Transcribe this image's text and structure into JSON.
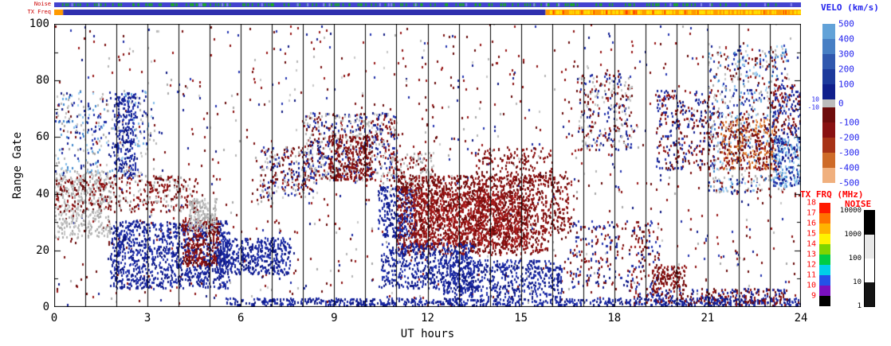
{
  "chart_data": {
    "type": "heatmap",
    "title": "",
    "xlabel": "UT hours",
    "ylabel": "Range Gate",
    "xlim": [
      0,
      24
    ],
    "ylim": [
      0,
      100
    ],
    "xticks": [
      0,
      3,
      6,
      9,
      12,
      15,
      18,
      21,
      24
    ],
    "yticks": [
      0,
      20,
      40,
      60,
      80,
      100
    ],
    "hour_gridlines": true,
    "seed": 1337,
    "strips": {
      "noise_label": "Noise",
      "txfreq_label": "TX Freq",
      "noise": {
        "base": "#4343cf",
        "speck": "#18b418",
        "speck_count": 180,
        "light": "#8c8cf0",
        "light_count": 24
      },
      "txfreq": {
        "segments": [
          {
            "from": 0.0,
            "to": 0.012,
            "color": "#ff9a00"
          },
          {
            "from": 0.012,
            "to": 0.658,
            "color": "#2f2fae"
          },
          {
            "from": 0.658,
            "to": 1.0,
            "color": "#ff9a00"
          }
        ],
        "dash_from": 0.658,
        "dash_color": "#ffe400",
        "dash_count": 150,
        "dash2_color": "#ff3c00",
        "dash2_count": 18
      }
    },
    "colorbars": {
      "velo": {
        "title": "VELO (km/s)",
        "title_color": "#2222ee",
        "label_color": "#2222ee",
        "labels": [
          "500",
          "400",
          "300",
          "200",
          "100",
          "0",
          "-100",
          "-200",
          "-300",
          "-400",
          "-500"
        ],
        "mid_labels": [
          "10",
          "-10"
        ],
        "colors": [
          "#62a2d8",
          "#477fc4",
          "#3058ae",
          "#1d3a9c",
          "#101f8c",
          "#bcbcbc",
          "#6e0c0c",
          "#891111",
          "#a73317",
          "#ce6b28",
          "#f0b07e"
        ]
      },
      "txfrq": {
        "title": "TX FRQ (MHz)",
        "title_color": "#ff0000",
        "label_color": "#ff0000",
        "labels": [
          "18",
          "17",
          "16",
          "15",
          "14",
          "13",
          "12",
          "11",
          "10",
          "9"
        ],
        "colors": [
          "#ff1a00",
          "#ff7300",
          "#ffb300",
          "#fff200",
          "#7fd400",
          "#00cc44",
          "#00cfe8",
          "#2451e8",
          "#7a10bf",
          "#000000"
        ]
      },
      "noise": {
        "title": "NOISE",
        "title_color": "#ff0000",
        "label_color": "#000000",
        "labels": [
          "10000",
          "1000",
          "100",
          "10",
          "1"
        ],
        "colors": [
          "#000000",
          "#e8e8e8",
          "#ffffff",
          "#141414"
        ]
      }
    },
    "palettes": {
      "blue": [
        "#131f94",
        "#1b2aa4",
        "#0e1780",
        "#2334b0"
      ],
      "lightblue": [
        "#63a7de",
        "#82bce9",
        "#3f86cc",
        "#9fd0f2"
      ],
      "darkred": [
        "#7a0e0e",
        "#8d1212",
        "#670a0a",
        "#991717"
      ],
      "brightred": [
        "#b22121",
        "#a31b1b"
      ],
      "orange": [
        "#e08038",
        "#d2691e",
        "#f0a360",
        "#c75c1c"
      ],
      "gray": [
        "#b5b5b5",
        "#c7c7c7",
        "#a7a7a7"
      ]
    },
    "regions": [
      {
        "x": [
          0,
          24
        ],
        "y": [
          0,
          100
        ],
        "n": 900,
        "p": [
          "darkred",
          "blue",
          "gray"
        ]
      },
      {
        "x": [
          0,
          24
        ],
        "y": [
          0,
          100
        ],
        "n": 350,
        "p": [
          "darkred"
        ]
      },
      {
        "x": [
          0,
          1.8
        ],
        "y": [
          24,
          48
        ],
        "n": 380,
        "p": [
          "gray"
        ]
      },
      {
        "x": [
          0,
          4.6
        ],
        "y": [
          33,
          46
        ],
        "n": 420,
        "p": [
          "darkred",
          "darkred",
          "gray"
        ]
      },
      {
        "x": [
          0,
          3.2
        ],
        "y": [
          46,
          76
        ],
        "n": 320,
        "p": [
          "blue",
          "lightblue",
          "gray"
        ]
      },
      {
        "x": [
          1.9,
          2.6
        ],
        "y": [
          45,
          75
        ],
        "n": 220,
        "p": [
          "blue"
        ]
      },
      {
        "x": [
          1.8,
          5.6
        ],
        "y": [
          6,
          30
        ],
        "n": 1100,
        "p": [
          "blue"
        ]
      },
      {
        "x": [
          4.1,
          5.3
        ],
        "y": [
          14,
          31
        ],
        "n": 300,
        "p": [
          "darkred"
        ]
      },
      {
        "x": [
          4.3,
          5.2
        ],
        "y": [
          26,
          38
        ],
        "n": 160,
        "p": [
          "gray"
        ]
      },
      {
        "x": [
          5.2,
          7.6
        ],
        "y": [
          11,
          24
        ],
        "n": 420,
        "p": [
          "blue"
        ]
      },
      {
        "x": [
          6.6,
          8.3
        ],
        "y": [
          38,
          56
        ],
        "n": 240,
        "p": [
          "darkred",
          "blue",
          "gray"
        ]
      },
      {
        "x": [
          8.0,
          11.0
        ],
        "y": [
          44,
          68
        ],
        "n": 650,
        "p": [
          "darkred",
          "gray",
          "blue"
        ]
      },
      {
        "x": [
          8.8,
          10.2
        ],
        "y": [
          44,
          60
        ],
        "n": 260,
        "p": [
          "darkred"
        ]
      },
      {
        "x": [
          10.4,
          11.6
        ],
        "y": [
          24,
          42
        ],
        "n": 260,
        "p": [
          "blue"
        ]
      },
      {
        "x": [
          10.8,
          12.2
        ],
        "y": [
          40,
          55
        ],
        "n": 150,
        "p": [
          "darkred",
          "gray"
        ]
      },
      {
        "x": [
          11.0,
          15.8
        ],
        "y": [
          18,
          46
        ],
        "n": 1500,
        "p": [
          "darkred"
        ]
      },
      {
        "x": [
          11.5,
          15.2
        ],
        "y": [
          21,
          40
        ],
        "n": 900,
        "p": [
          "darkred",
          "brightred"
        ]
      },
      {
        "x": [
          13.5,
          16.0
        ],
        "y": [
          44,
          56
        ],
        "n": 160,
        "p": [
          "darkred"
        ]
      },
      {
        "x": [
          10.5,
          13.5
        ],
        "y": [
          6,
          22
        ],
        "n": 520,
        "p": [
          "blue"
        ]
      },
      {
        "x": [
          12.5,
          16.3
        ],
        "y": [
          3,
          16
        ],
        "n": 520,
        "p": [
          "blue"
        ]
      },
      {
        "x": [
          5.5,
          24
        ],
        "y": [
          0,
          2.5
        ],
        "n": 700,
        "p": [
          "blue"
        ]
      },
      {
        "x": [
          15.8,
          16.6
        ],
        "y": [
          25,
          46
        ],
        "n": 140,
        "p": [
          "darkred"
        ]
      },
      {
        "x": [
          16.5,
          19.5
        ],
        "y": [
          5,
          30
        ],
        "n": 260,
        "p": [
          "darkred",
          "blue"
        ]
      },
      {
        "x": [
          16.8,
          18.6
        ],
        "y": [
          55,
          82
        ],
        "n": 260,
        "p": [
          "blue",
          "gray",
          "darkred"
        ]
      },
      {
        "x": [
          19.3,
          21.2
        ],
        "y": [
          48,
          76
        ],
        "n": 300,
        "p": [
          "blue",
          "darkred"
        ]
      },
      {
        "x": [
          21.0,
          23.6
        ],
        "y": [
          40,
          92
        ],
        "n": 650,
        "p": [
          "blue",
          "darkred",
          "gray",
          "lightblue"
        ]
      },
      {
        "x": [
          21.4,
          23.2
        ],
        "y": [
          48,
          66
        ],
        "n": 330,
        "p": [
          "orange",
          "darkred"
        ]
      },
      {
        "x": [
          23.1,
          24
        ],
        "y": [
          42,
          60
        ],
        "n": 200,
        "p": [
          "lightblue",
          "blue"
        ]
      },
      {
        "x": [
          23.0,
          24
        ],
        "y": [
          60,
          78
        ],
        "n": 140,
        "p": [
          "blue",
          "darkred"
        ]
      },
      {
        "x": [
          18.6,
          23.6
        ],
        "y": [
          0,
          6
        ],
        "n": 320,
        "p": [
          "darkred",
          "blue"
        ]
      },
      {
        "x": [
          19.2,
          20.3
        ],
        "y": [
          6,
          14
        ],
        "n": 120,
        "p": [
          "darkred"
        ]
      }
    ]
  }
}
